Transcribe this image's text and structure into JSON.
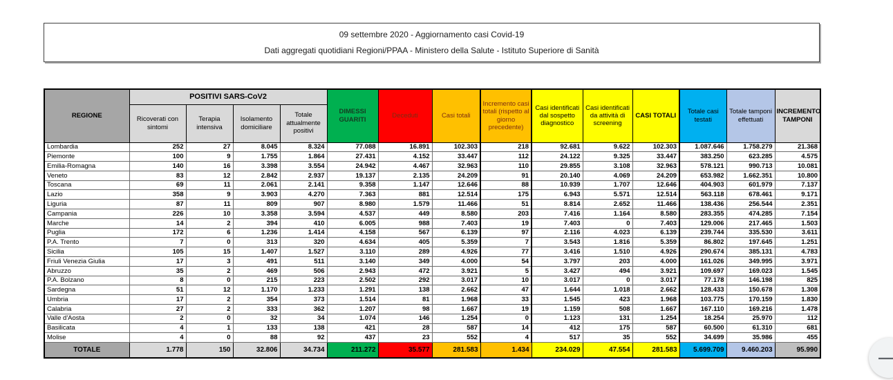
{
  "title_box": {
    "line1": "09 settembre 2020 - Aggiornamento casi Covid-19",
    "line2": "Dati aggregati quotidiani Regioni/PPAA - Ministero della Salute - Istituto Superiore di Sanità"
  },
  "viewer": {
    "zoom_out_symbol": "—"
  },
  "colors": {
    "header_gray_dark": "#A6A6A6",
    "header_gray_light": "#D9D9D9",
    "green": "#00B050",
    "red": "#FF0000",
    "orange": "#FFC000",
    "yellow": "#FFFF00",
    "blue": "#00B0F0",
    "periwinkle": "#B4C6E7",
    "total_incremento_tamponi_gray": "#BFBFBF"
  },
  "table": {
    "group_header": "POSITIVI SARS-CoV2",
    "columns": [
      {
        "label": "REGIONE"
      },
      {
        "label": "Ricoverati con sintomi"
      },
      {
        "label": "Terapia intensiva"
      },
      {
        "label": "Isolamento domiciliare"
      },
      {
        "label": "Totale attualmente positivi"
      },
      {
        "label": "DIMESSI GUARITI"
      },
      {
        "label": "Deceduti"
      },
      {
        "label": "Casi totali"
      },
      {
        "label": "Incremento casi totali (rispetto al giorno precedente)"
      },
      {
        "label": "Casi identificati dal sospetto diagnostico"
      },
      {
        "label": "Casi identificati da attività di screening"
      },
      {
        "label": "CASI TOTALI"
      },
      {
        "label": "Totale casi testati"
      },
      {
        "label": "Totale tamponi effettuati"
      },
      {
        "label": "INCREMENTO TAMPONI"
      }
    ],
    "rows": [
      [
        "Lombardia",
        "252",
        "27",
        "8.045",
        "8.324",
        "77.088",
        "16.891",
        "102.303",
        "218",
        "92.681",
        "9.622",
        "102.303",
        "1.087.646",
        "1.758.279",
        "21.368"
      ],
      [
        "Piemonte",
        "100",
        "9",
        "1.755",
        "1.864",
        "27.431",
        "4.152",
        "33.447",
        "112",
        "24.122",
        "9.325",
        "33.447",
        "383.250",
        "623.285",
        "4.575"
      ],
      [
        "Emilia-Romagna",
        "140",
        "16",
        "3.398",
        "3.554",
        "24.942",
        "4.467",
        "32.963",
        "110",
        "29.855",
        "3.108",
        "32.963",
        "578.121",
        "990.713",
        "10.081"
      ],
      [
        "Veneto",
        "83",
        "12",
        "2.842",
        "2.937",
        "19.137",
        "2.135",
        "24.209",
        "91",
        "20.140",
        "4.069",
        "24.209",
        "653.982",
        "1.662.351",
        "10.800"
      ],
      [
        "Toscana",
        "69",
        "11",
        "2.061",
        "2.141",
        "9.358",
        "1.147",
        "12.646",
        "88",
        "10.939",
        "1.707",
        "12.646",
        "404.903",
        "601.979",
        "7.137"
      ],
      [
        "Lazio",
        "358",
        "9",
        "3.903",
        "4.270",
        "7.363",
        "881",
        "12.514",
        "175",
        "6.943",
        "5.571",
        "12.514",
        "563.118",
        "678.461",
        "9.171"
      ],
      [
        "Liguria",
        "87",
        "11",
        "809",
        "907",
        "8.980",
        "1.579",
        "11.466",
        "51",
        "8.814",
        "2.652",
        "11.466",
        "138.436",
        "256.544",
        "2.351"
      ],
      [
        "Campania",
        "226",
        "10",
        "3.358",
        "3.594",
        "4.537",
        "449",
        "8.580",
        "203",
        "7.416",
        "1.164",
        "8.580",
        "283.355",
        "474.285",
        "7.154"
      ],
      [
        "Marche",
        "14",
        "2",
        "394",
        "410",
        "6.005",
        "988",
        "7.403",
        "19",
        "7.403",
        "0",
        "7.403",
        "129.006",
        "217.465",
        "1.503"
      ],
      [
        "Puglia",
        "172",
        "6",
        "1.236",
        "1.414",
        "4.158",
        "567",
        "6.139",
        "97",
        "2.116",
        "4.023",
        "6.139",
        "239.744",
        "335.530",
        "3.611"
      ],
      [
        "P.A. Trento",
        "7",
        "0",
        "313",
        "320",
        "4.634",
        "405",
        "5.359",
        "7",
        "3.543",
        "1.816",
        "5.359",
        "86.802",
        "197.645",
        "1.251"
      ],
      [
        "Sicilia",
        "105",
        "15",
        "1.407",
        "1.527",
        "3.110",
        "289",
        "4.926",
        "77",
        "3.416",
        "1.510",
        "4.926",
        "290.674",
        "385.131",
        "4.783"
      ],
      [
        "Friuli Venezia Giulia",
        "17",
        "3",
        "491",
        "511",
        "3.140",
        "349",
        "4.000",
        "54",
        "3.797",
        "203",
        "4.000",
        "161.026",
        "349.995",
        "3.971"
      ],
      [
        "Abruzzo",
        "35",
        "2",
        "469",
        "506",
        "2.943",
        "472",
        "3.921",
        "5",
        "3.427",
        "494",
        "3.921",
        "109.697",
        "169.023",
        "1.545"
      ],
      [
        "P.A. Bolzano",
        "8",
        "0",
        "215",
        "223",
        "2.502",
        "292",
        "3.017",
        "10",
        "3.017",
        "0",
        "3.017",
        "77.178",
        "146.198",
        "825"
      ],
      [
        "Sardegna",
        "51",
        "12",
        "1.170",
        "1.233",
        "1.291",
        "138",
        "2.662",
        "47",
        "1.644",
        "1.018",
        "2.662",
        "128.433",
        "150.678",
        "1.308"
      ],
      [
        "Umbria",
        "17",
        "2",
        "354",
        "373",
        "1.514",
        "81",
        "1.968",
        "33",
        "1.545",
        "423",
        "1.968",
        "103.775",
        "170.159",
        "1.830"
      ],
      [
        "Calabria",
        "27",
        "2",
        "333",
        "362",
        "1.207",
        "98",
        "1.667",
        "19",
        "1.159",
        "508",
        "1.667",
        "167.110",
        "169.216",
        "1.478"
      ],
      [
        "Valle d'Aosta",
        "2",
        "0",
        "32",
        "34",
        "1.074",
        "146",
        "1.254",
        "0",
        "1.123",
        "131",
        "1.254",
        "18.254",
        "25.970",
        "112"
      ],
      [
        "Basilicata",
        "4",
        "1",
        "133",
        "138",
        "421",
        "28",
        "587",
        "14",
        "412",
        "175",
        "587",
        "60.500",
        "61.310",
        "681"
      ],
      [
        "Molise",
        "4",
        "0",
        "88",
        "92",
        "437",
        "23",
        "552",
        "4",
        "517",
        "35",
        "552",
        "34.699",
        "35.986",
        "455"
      ]
    ],
    "total_row": [
      "TOTALE",
      "1.778",
      "150",
      "32.806",
      "34.734",
      "211.272",
      "35.577",
      "281.583",
      "1.434",
      "234.029",
      "47.554",
      "281.583",
      "5.699.709",
      "9.460.203",
      "95.990"
    ]
  }
}
